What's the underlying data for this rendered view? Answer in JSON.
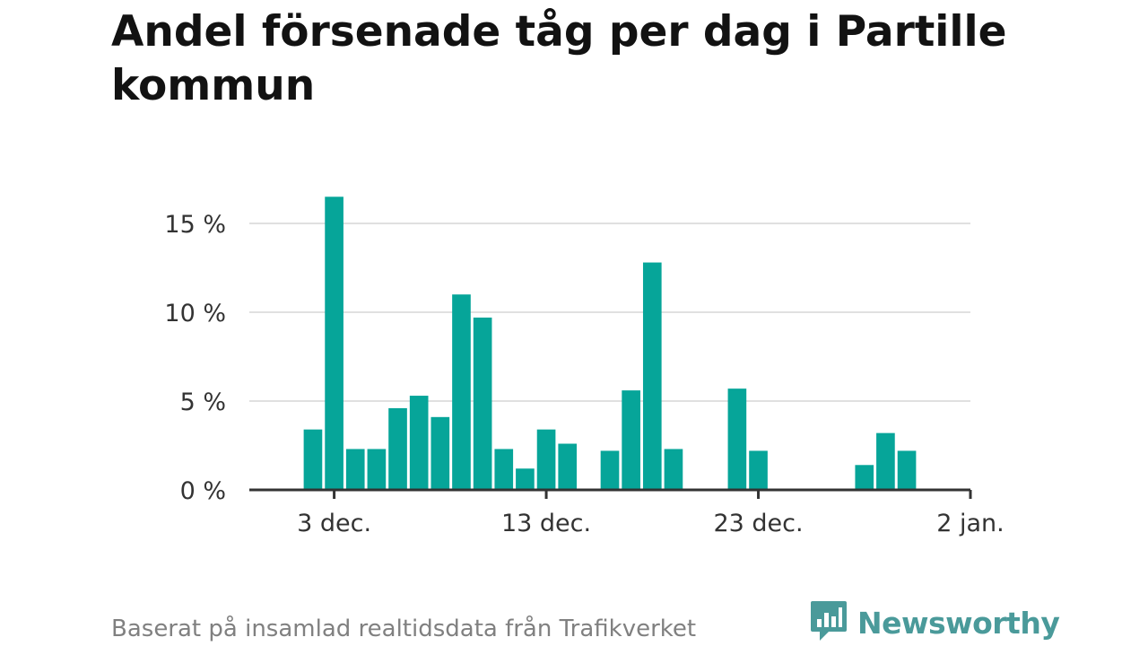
{
  "title": "Andel försenade tåg per dag i Partille kommun",
  "source": "Baserat på insamlad realtidsdata från Trafikverket",
  "brand": {
    "name": "Newsworthy",
    "logo_icon": "newsworthy-logo-icon"
  },
  "colors": {
    "bar": "#06a599",
    "grid": "#e0e0e0",
    "axis": "#333333",
    "text": "#333333",
    "brand": "#4a9a9a"
  },
  "chart_data": {
    "type": "bar",
    "title": "Andel försenade tåg per dag i Partille kommun",
    "xlabel": "",
    "ylabel": "",
    "ylim": [
      0,
      15
    ],
    "grid": true,
    "y_ticks": [
      {
        "value": 0,
        "label": "0 %"
      },
      {
        "value": 5,
        "label": "5 %"
      },
      {
        "value": 10,
        "label": "10 %"
      },
      {
        "value": 15,
        "label": "15 %"
      }
    ],
    "x_ticks": [
      {
        "date": "2023-12-03",
        "label": "3 dec."
      },
      {
        "date": "2023-12-13",
        "label": "13 dec."
      },
      {
        "date": "2023-12-23",
        "label": "23 dec."
      },
      {
        "date": "2024-01-02",
        "label": "2 jan."
      }
    ],
    "x_range": [
      "2023-11-29",
      "2024-01-02"
    ],
    "bars": [
      {
        "date": "2023-12-02",
        "value": 3.4
      },
      {
        "date": "2023-12-03",
        "value": 16.5
      },
      {
        "date": "2023-12-04",
        "value": 2.3
      },
      {
        "date": "2023-12-05",
        "value": 2.3
      },
      {
        "date": "2023-12-06",
        "value": 4.6
      },
      {
        "date": "2023-12-07",
        "value": 5.3
      },
      {
        "date": "2023-12-08",
        "value": 4.1
      },
      {
        "date": "2023-12-09",
        "value": 11.0
      },
      {
        "date": "2023-12-10",
        "value": 9.7
      },
      {
        "date": "2023-12-11",
        "value": 2.3
      },
      {
        "date": "2023-12-12",
        "value": 1.2
      },
      {
        "date": "2023-12-13",
        "value": 3.4
      },
      {
        "date": "2023-12-14",
        "value": 2.6
      },
      {
        "date": "2023-12-15",
        "value": 0
      },
      {
        "date": "2023-12-16",
        "value": 2.2
      },
      {
        "date": "2023-12-17",
        "value": 5.6
      },
      {
        "date": "2023-12-18",
        "value": 12.8
      },
      {
        "date": "2023-12-19",
        "value": 2.3
      },
      {
        "date": "2023-12-20",
        "value": 0
      },
      {
        "date": "2023-12-21",
        "value": 0
      },
      {
        "date": "2023-12-22",
        "value": 5.7
      },
      {
        "date": "2023-12-23",
        "value": 2.2
      },
      {
        "date": "2023-12-24",
        "value": 0
      },
      {
        "date": "2023-12-25",
        "value": 0
      },
      {
        "date": "2023-12-26",
        "value": 0
      },
      {
        "date": "2023-12-27",
        "value": 0
      },
      {
        "date": "2023-12-28",
        "value": 1.4
      },
      {
        "date": "2023-12-29",
        "value": 3.2
      },
      {
        "date": "2023-12-30",
        "value": 2.2
      }
    ]
  }
}
